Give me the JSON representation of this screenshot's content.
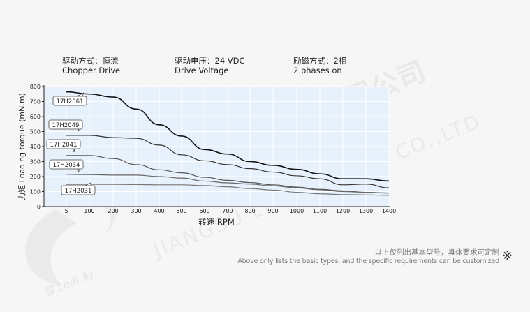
{
  "header": {
    "drive_mode_cn": "驱动方式：恒流",
    "drive_mode_en": "Chopper Drive",
    "voltage_cn": "驱动电压：24 VDC",
    "voltage_en": "Drive Voltage",
    "excitation_cn": "励磁方式：2相",
    "excitation_en": "2 phases on"
  },
  "watermark": {
    "company_cn": "江苏雷利电机股份有限公司",
    "company_en": "JIANGSU LEILI MOTOR CO.,LTD",
    "logo_text": "雷 Leili 利"
  },
  "footer": {
    "note_cn": "以上仅列出基本型号，具体要求可定制",
    "note_en": "Above only lists the basic types, and the specific requirements can be customized",
    "mark": "※"
  },
  "chart_data": {
    "type": "line",
    "xlabel": "转速 RPM",
    "ylabel": "力矩 Loading torque (mN.m)",
    "x_ticks": [
      5,
      100,
      200,
      300,
      400,
      500,
      600,
      700,
      800,
      900,
      1000,
      1100,
      1200,
      1300,
      1400
    ],
    "y_ticks": [
      0,
      100,
      200,
      300,
      400,
      500,
      600,
      700,
      800
    ],
    "xlim": [
      0,
      1400
    ],
    "ylim": [
      0,
      800
    ],
    "x_category_scale": true,
    "grid": true,
    "colors": {
      "plot_bg": "#e6f1fb",
      "grid": "#ffffff",
      "17H2061": "#111111",
      "17H2049": "#333333",
      "17H2041": "#555555",
      "17H2034": "#666666",
      "17H2031": "#777777"
    },
    "series": [
      {
        "name": "17H2061",
        "x": [
          5,
          100,
          200,
          300,
          400,
          500,
          600,
          700,
          800,
          900,
          1000,
          1100,
          1200,
          1300,
          1400
        ],
        "y": [
          765,
          750,
          730,
          650,
          545,
          470,
          380,
          350,
          300,
          275,
          248,
          218,
          185,
          185,
          170
        ]
      },
      {
        "name": "17H2049",
        "x": [
          5,
          100,
          200,
          300,
          400,
          500,
          600,
          700,
          800,
          900,
          1000,
          1100,
          1200,
          1300,
          1400
        ],
        "y": [
          475,
          475,
          460,
          455,
          410,
          345,
          305,
          280,
          253,
          230,
          205,
          185,
          145,
          150,
          125
        ]
      },
      {
        "name": "17H2041",
        "x": [
          5,
          100,
          200,
          300,
          400,
          500,
          600,
          700,
          800,
          900,
          1000,
          1100,
          1200,
          1300,
          1400
        ],
        "y": [
          340,
          340,
          320,
          280,
          245,
          225,
          195,
          175,
          160,
          145,
          130,
          115,
          105,
          95,
          90
        ]
      },
      {
        "name": "17H2034",
        "x": [
          5,
          100,
          200,
          300,
          400,
          500,
          600,
          700,
          800,
          900,
          1000,
          1100,
          1200,
          1300,
          1400
        ],
        "y": [
          215,
          213,
          210,
          210,
          200,
          190,
          170,
          158,
          150,
          138,
          125,
          112,
          100,
          95,
          90
        ]
      },
      {
        "name": "17H2031",
        "x": [
          5,
          100,
          200,
          300,
          400,
          500,
          600,
          700,
          800,
          900,
          1000,
          1100,
          1200,
          1300,
          1400
        ],
        "y": [
          148,
          148,
          148,
          147,
          145,
          145,
          140,
          132,
          120,
          110,
          95,
          85,
          80,
          78,
          75
        ]
      }
    ]
  }
}
